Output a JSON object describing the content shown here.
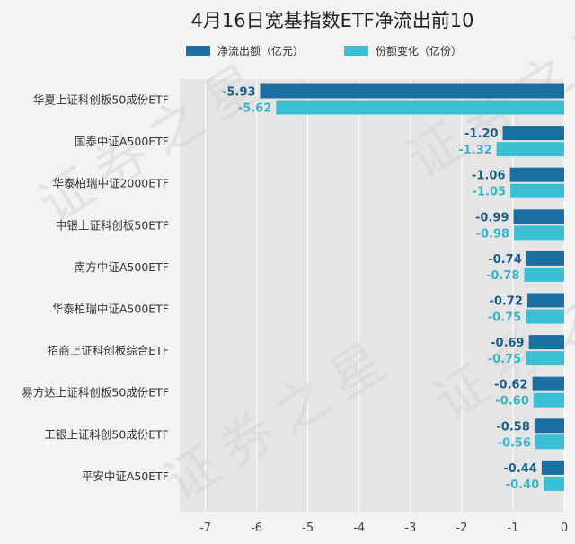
{
  "watermark": "证券之星",
  "chart_data": {
    "type": "bar",
    "orientation": "horizontal",
    "title": "4月16日宽基指数ETF净流出前10",
    "categories": [
      "华夏上证科创板50成份ETF",
      "国泰中证A500ETF",
      "华泰柏瑞中证2000ETF",
      "中银上证科创板50ETF",
      "南方中证A500ETF",
      "华泰柏瑞中证A500ETF",
      "招商上证科创板综合ETF",
      "易方达上证科创板50成份ETF",
      "工银上证科创50成份ETF",
      "平安中证A50ETF"
    ],
    "series": [
      {
        "name": "净流出额（亿元）",
        "color": "#1b6fa3",
        "values": [
          -5.93,
          -1.2,
          -1.06,
          -0.99,
          -0.74,
          -0.72,
          -0.69,
          -0.62,
          -0.58,
          -0.44
        ],
        "labels": [
          "-5.93",
          "-1.20",
          "-1.06",
          "-0.99",
          "-0.74",
          "-0.72",
          "-0.69",
          "-0.62",
          "-0.58",
          "-0.44"
        ]
      },
      {
        "name": "份额变化（亿份）",
        "color": "#3bbfd3",
        "values": [
          -5.62,
          -1.32,
          -1.05,
          -0.98,
          -0.78,
          -0.75,
          -0.75,
          -0.6,
          -0.56,
          -0.4
        ],
        "labels": [
          "-5.62",
          "-1.32",
          "-1.05",
          "-0.98",
          "-0.78",
          "-0.75",
          "-0.75",
          "-0.60",
          "-0.56",
          "-0.40"
        ]
      }
    ],
    "xlim": [
      -7.5,
      0
    ],
    "xticks": [
      -7,
      -6,
      -5,
      -4,
      -3,
      -2,
      -1,
      0
    ],
    "xtick_labels": [
      "-7",
      "-6",
      "-5",
      "-4",
      "-3",
      "-2",
      "-1",
      "0"
    ],
    "legend_position": "top",
    "grid": true
  }
}
